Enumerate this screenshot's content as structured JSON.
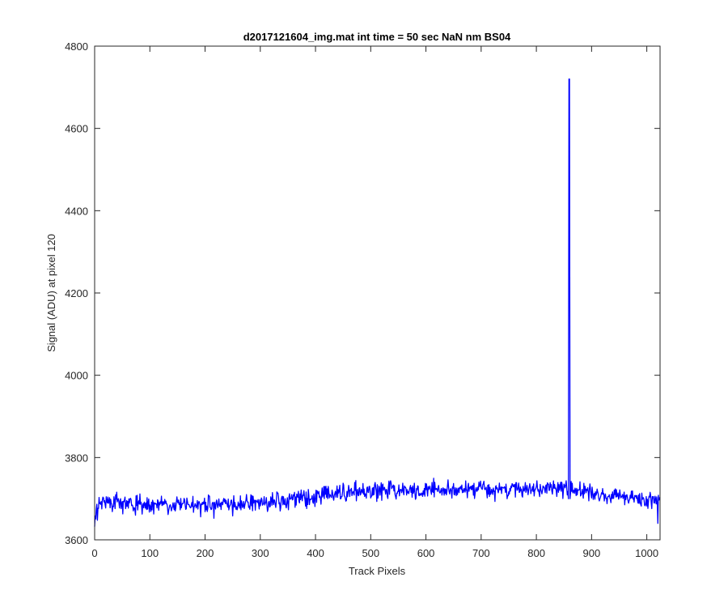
{
  "figure": {
    "background": "#ffffff",
    "axes_color": "#262626",
    "line_color": "#0000ff"
  },
  "chart_data": {
    "type": "line",
    "title": "d2017121604_img.mat int time = 50 sec  NaN nm BS04",
    "xlabel": "Track Pixels",
    "ylabel": "Signal (ADU) at pixel 120",
    "xlim": [
      0,
      1024
    ],
    "ylim": [
      3600,
      4800
    ],
    "xticks": [
      0,
      100,
      200,
      300,
      400,
      500,
      600,
      700,
      800,
      900,
      1000
    ],
    "yticks": [
      3600,
      3800,
      4000,
      4200,
      4400,
      4600,
      4800
    ],
    "grid": false,
    "legend": "none",
    "baseline_trend": {
      "x": [
        0,
        10,
        200,
        340,
        380,
        440,
        600,
        850,
        910,
        1024
      ],
      "y": [
        3650,
        3690,
        3684,
        3692,
        3702,
        3715,
        3722,
        3725,
        3712,
        3692
      ]
    },
    "noise_amplitude_adu": 18,
    "notable_points": [
      {
        "x": 0,
        "y": 3632
      },
      {
        "x": 858,
        "y": 3700
      },
      {
        "x": 859,
        "y": 4720
      },
      {
        "x": 860,
        "y": 4720
      },
      {
        "x": 861,
        "y": 3700
      },
      {
        "x": 1020,
        "y": 3640
      }
    ],
    "series": [
      {
        "color": "#0000ff"
      }
    ]
  }
}
